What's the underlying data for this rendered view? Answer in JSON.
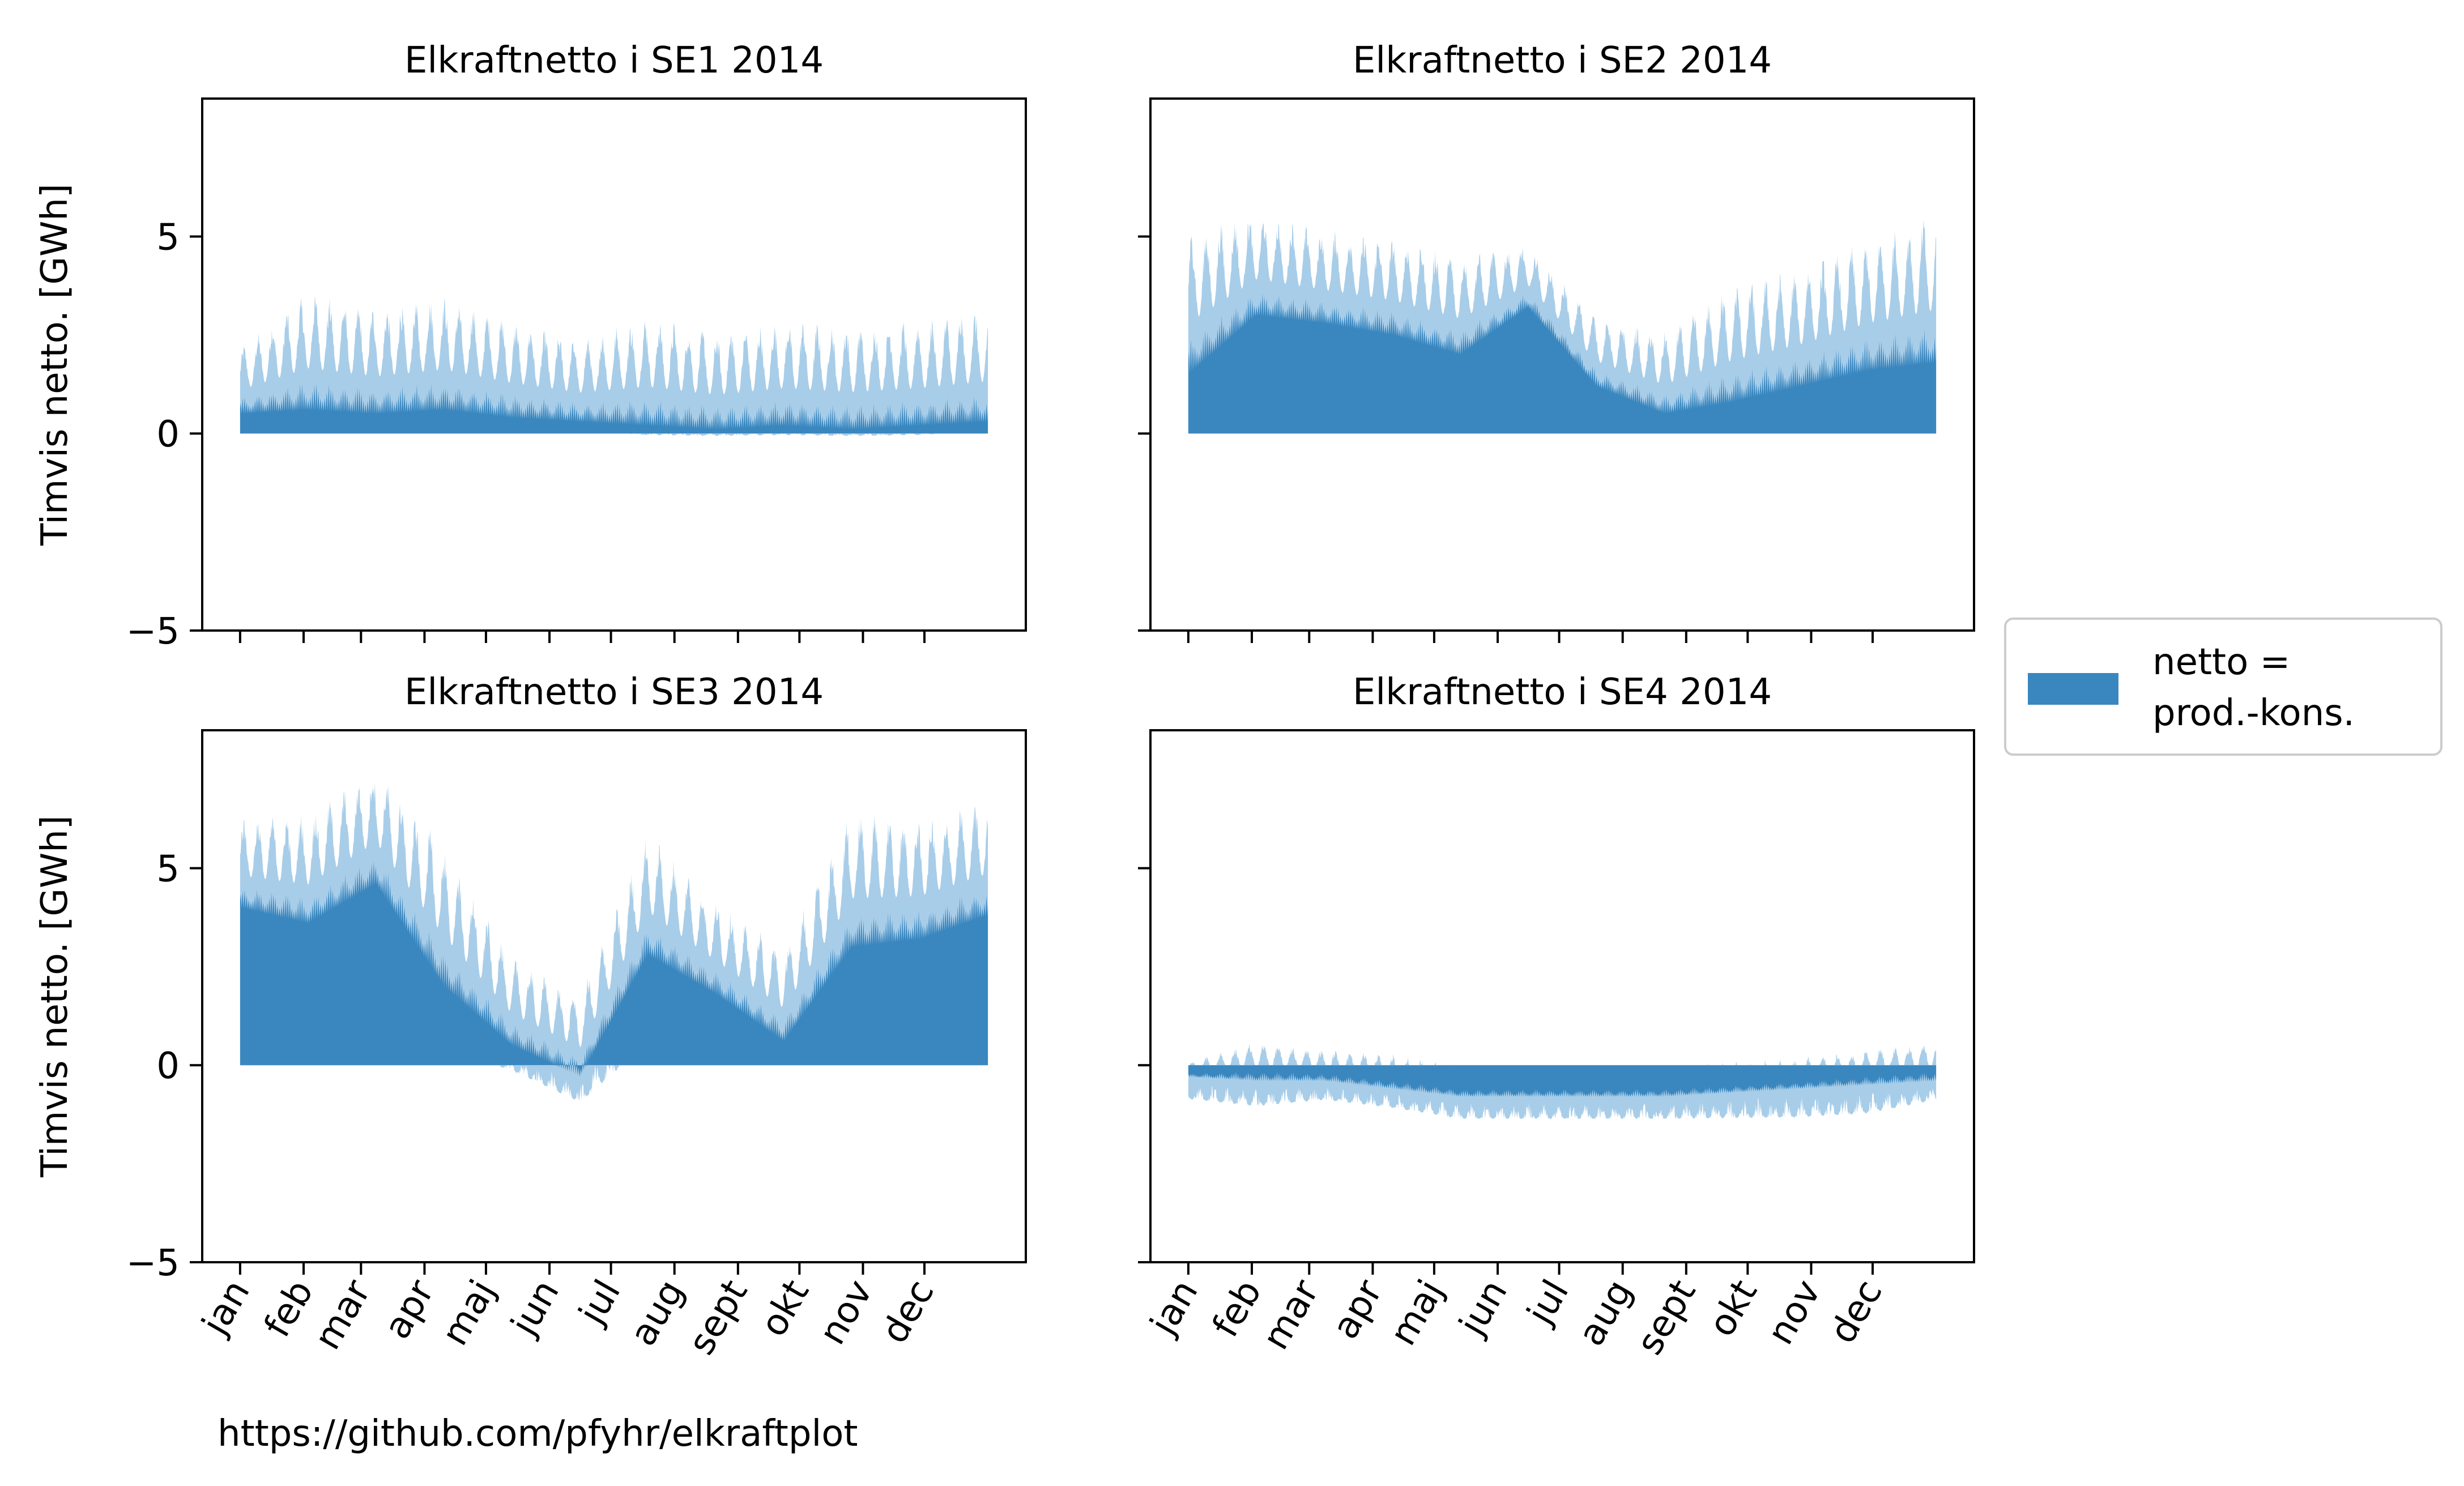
{
  "footer_text": "https://github.com/pfyhr/elkraftplot",
  "legend": {
    "label": "netto =\nprod.-kons.",
    "lines": [
      "netto =",
      "prod.-kons."
    ]
  },
  "colors": {
    "fill": "#3a87bf",
    "light": "#a8cde8",
    "axis": "#000000"
  },
  "chart_data": [
    {
      "type": "area",
      "title": "Elkraftnetto i SE1 2014",
      "ylabel": "Timvis netto. [GWh]",
      "ylim": [
        -5,
        8.5
      ],
      "yticks": [
        -5,
        0,
        5
      ],
      "x_ticks": [
        "jan",
        "feb",
        "mar",
        "apr",
        "maj",
        "jun",
        "jul",
        "aug",
        "sept",
        "okt",
        "nov",
        "dec"
      ],
      "x_ticks_shown": false,
      "series": [
        {
          "name": "netto = prod.-kons.",
          "x": [
            "jan",
            "feb",
            "mar",
            "apr",
            "maj",
            "jun",
            "jul",
            "aug",
            "sept",
            "okt",
            "nov",
            "dec"
          ],
          "upper_envelope": [
            2.2,
            3.6,
            3.2,
            3.5,
            2.9,
            2.4,
            3.0,
            2.6,
            2.9,
            2.8,
            2.9,
            3.2
          ],
          "base_level": [
            0.5,
            0.6,
            0.5,
            0.6,
            0.4,
            0.3,
            0.2,
            0.1,
            0.2,
            0.1,
            0.2,
            0.3
          ],
          "lower_envelope": [
            0.0,
            0.0,
            0.0,
            0.0,
            0.0,
            0.0,
            -0.1,
            -0.1,
            -0.1,
            -0.1,
            -0.1,
            0.0
          ]
        }
      ]
    },
    {
      "type": "area",
      "title": "Elkraftnetto i SE2 2014",
      "ylabel": "",
      "ylim": [
        -5,
        8.5
      ],
      "yticks": [
        -5,
        0,
        5
      ],
      "x_ticks": [
        "jan",
        "feb",
        "mar",
        "apr",
        "maj",
        "jun",
        "jul",
        "aug",
        "sept",
        "okt",
        "nov",
        "dec"
      ],
      "x_ticks_shown": false,
      "series": [
        {
          "name": "netto = prod.-kons.",
          "x": [
            "jan",
            "feb",
            "mar",
            "apr",
            "maj",
            "jun",
            "jul",
            "aug",
            "sept",
            "okt",
            "nov",
            "dec"
          ],
          "upper_envelope": [
            5.2,
            5.6,
            5.2,
            5.0,
            4.6,
            4.8,
            3.0,
            2.6,
            3.8,
            4.2,
            5.0,
            5.6
          ],
          "base_level": [
            1.5,
            3.0,
            2.8,
            2.5,
            2.0,
            3.2,
            1.2,
            0.5,
            0.8,
            1.2,
            1.6,
            1.8
          ],
          "lower_envelope": [
            0.0,
            0.0,
            0.0,
            0.0,
            0.0,
            0.0,
            0.0,
            0.0,
            0.0,
            0.0,
            0.0,
            0.0
          ]
        }
      ]
    },
    {
      "type": "area",
      "title": "Elkraftnetto i SE3 2014",
      "ylabel": "Timvis netto. [GWh]",
      "ylim": [
        -5,
        8.5
      ],
      "yticks": [
        -5,
        0,
        5
      ],
      "x_ticks": [
        "jan",
        "feb",
        "mar",
        "apr",
        "maj",
        "jun",
        "jul",
        "aug",
        "sept",
        "okt",
        "nov",
        "dec"
      ],
      "x_ticks_shown": true,
      "series": [
        {
          "name": "netto = prod.-kons.",
          "x": [
            "jan",
            "feb",
            "mar",
            "apr",
            "maj",
            "jun",
            "jul",
            "aug",
            "sept",
            "okt",
            "nov",
            "dec"
          ],
          "upper_envelope": [
            6.3,
            6.4,
            7.6,
            5.6,
            2.8,
            1.8,
            5.9,
            4.2,
            3.0,
            6.5,
            6.3,
            6.8
          ],
          "base_level": [
            4.0,
            3.6,
            4.6,
            2.0,
            0.5,
            -0.3,
            2.8,
            1.8,
            0.6,
            3.0,
            3.2,
            3.8
          ],
          "lower_envelope": [
            0.0,
            0.0,
            0.0,
            0.0,
            -0.3,
            -1.1,
            0.0,
            0.0,
            0.0,
            0.0,
            0.0,
            0.0
          ]
        }
      ]
    },
    {
      "type": "area",
      "title": "Elkraftnetto i SE4 2014",
      "ylabel": "",
      "ylim": [
        -5,
        8.5
      ],
      "yticks": [
        -5,
        0,
        5
      ],
      "x_ticks": [
        "jan",
        "feb",
        "mar",
        "apr",
        "maj",
        "jun",
        "jul",
        "aug",
        "sept",
        "okt",
        "nov",
        "dec"
      ],
      "x_ticks_shown": true,
      "series": [
        {
          "name": "netto = prod.-kons.",
          "x": [
            "jan",
            "feb",
            "mar",
            "apr",
            "maj",
            "jun",
            "jul",
            "aug",
            "sept",
            "okt",
            "nov",
            "dec"
          ],
          "upper_envelope": [
            0.1,
            0.6,
            0.4,
            0.3,
            0.0,
            0.0,
            0.0,
            0.0,
            0.1,
            0.2,
            0.4,
            0.6
          ],
          "base_level": [
            -0.3,
            -0.4,
            -0.4,
            -0.6,
            -0.8,
            -0.8,
            -0.8,
            -0.8,
            -0.7,
            -0.6,
            -0.5,
            -0.4
          ],
          "lower_envelope": [
            -1.0,
            -1.2,
            -1.0,
            -1.2,
            -1.5,
            -1.5,
            -1.5,
            -1.5,
            -1.5,
            -1.5,
            -1.4,
            -1.0
          ]
        }
      ]
    }
  ]
}
